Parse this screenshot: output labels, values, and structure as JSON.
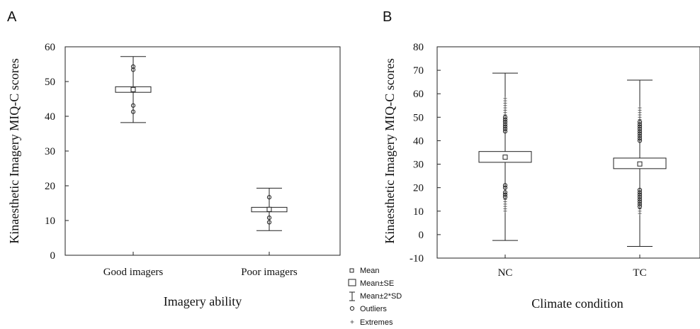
{
  "legend": {
    "items": [
      {
        "symbol": "mean",
        "label": "Mean"
      },
      {
        "symbol": "se",
        "label": "Mean±SE"
      },
      {
        "symbol": "sd",
        "label": "Mean±2*SD"
      },
      {
        "symbol": "outlier",
        "label": "Outliers"
      },
      {
        "symbol": "extreme",
        "label": "Extremes"
      }
    ]
  },
  "chart_data": [
    {
      "panel": "A",
      "type": "box",
      "xlabel": "Imagery ability",
      "ylabel": "Kinaesthetic Imagery MIQ-C  scores",
      "ylim": [
        0,
        60
      ],
      "yticks": [
        0,
        10,
        20,
        30,
        40,
        50,
        60
      ],
      "grid": false,
      "categories": [
        "Good imagers",
        "Poor imagers"
      ],
      "boxes": [
        {
          "category": "Good imagers",
          "mean": 47.7,
          "se_low": 46.9,
          "se_high": 48.5,
          "sd2_low": 38.2,
          "sd2_high": 57.2,
          "outliers": [
            54.3,
            53.4,
            43.1,
            41.3
          ],
          "extremes": []
        },
        {
          "category": "Poor imagers",
          "mean": 13.2,
          "se_low": 12.5,
          "se_high": 13.8,
          "sd2_low": 7.1,
          "sd2_high": 19.3,
          "outliers": [
            16.7,
            10.8,
            9.5
          ],
          "extremes": []
        }
      ]
    },
    {
      "panel": "B",
      "type": "box",
      "xlabel": "Climate condition",
      "ylabel": "Kinaesthetic Imagery MIQ-C  scores",
      "ylim": [
        -10,
        80
      ],
      "yticks": [
        -10,
        0,
        10,
        20,
        30,
        40,
        50,
        60,
        70,
        80
      ],
      "grid": false,
      "categories": [
        "NC",
        "TC"
      ],
      "boxes": [
        {
          "category": "NC",
          "mean": 33.0,
          "se_low": 30.8,
          "se_high": 35.4,
          "sd2_low": -2.5,
          "sd2_high": 68.8,
          "outliers": [
            50.0,
            49.0,
            48.0,
            47.0,
            46.0,
            45.0,
            44.0,
            21.0,
            20.0,
            18.0,
            17.0,
            16.0
          ],
          "extremes": [
            58.0,
            57.0,
            56.0,
            55.0,
            54.0,
            53.0,
            52.0,
            51.0,
            15.0,
            14.0,
            13.0,
            12.0,
            11.0,
            10.0
          ]
        },
        {
          "category": "TC",
          "mean": 30.1,
          "se_low": 28.1,
          "se_high": 32.6,
          "sd2_low": -5.0,
          "sd2_high": 65.8,
          "outliers": [
            48.0,
            47.0,
            46.0,
            45.0,
            44.0,
            43.0,
            42.0,
            41.0,
            40.0,
            19.0,
            18.0,
            17.0,
            16.0,
            15.0,
            14.0,
            13.0,
            12.0
          ],
          "extremes": [
            54.0,
            53.0,
            52.0,
            51.0,
            50.0,
            49.0,
            11.0,
            10.0,
            9.0
          ]
        }
      ]
    }
  ]
}
